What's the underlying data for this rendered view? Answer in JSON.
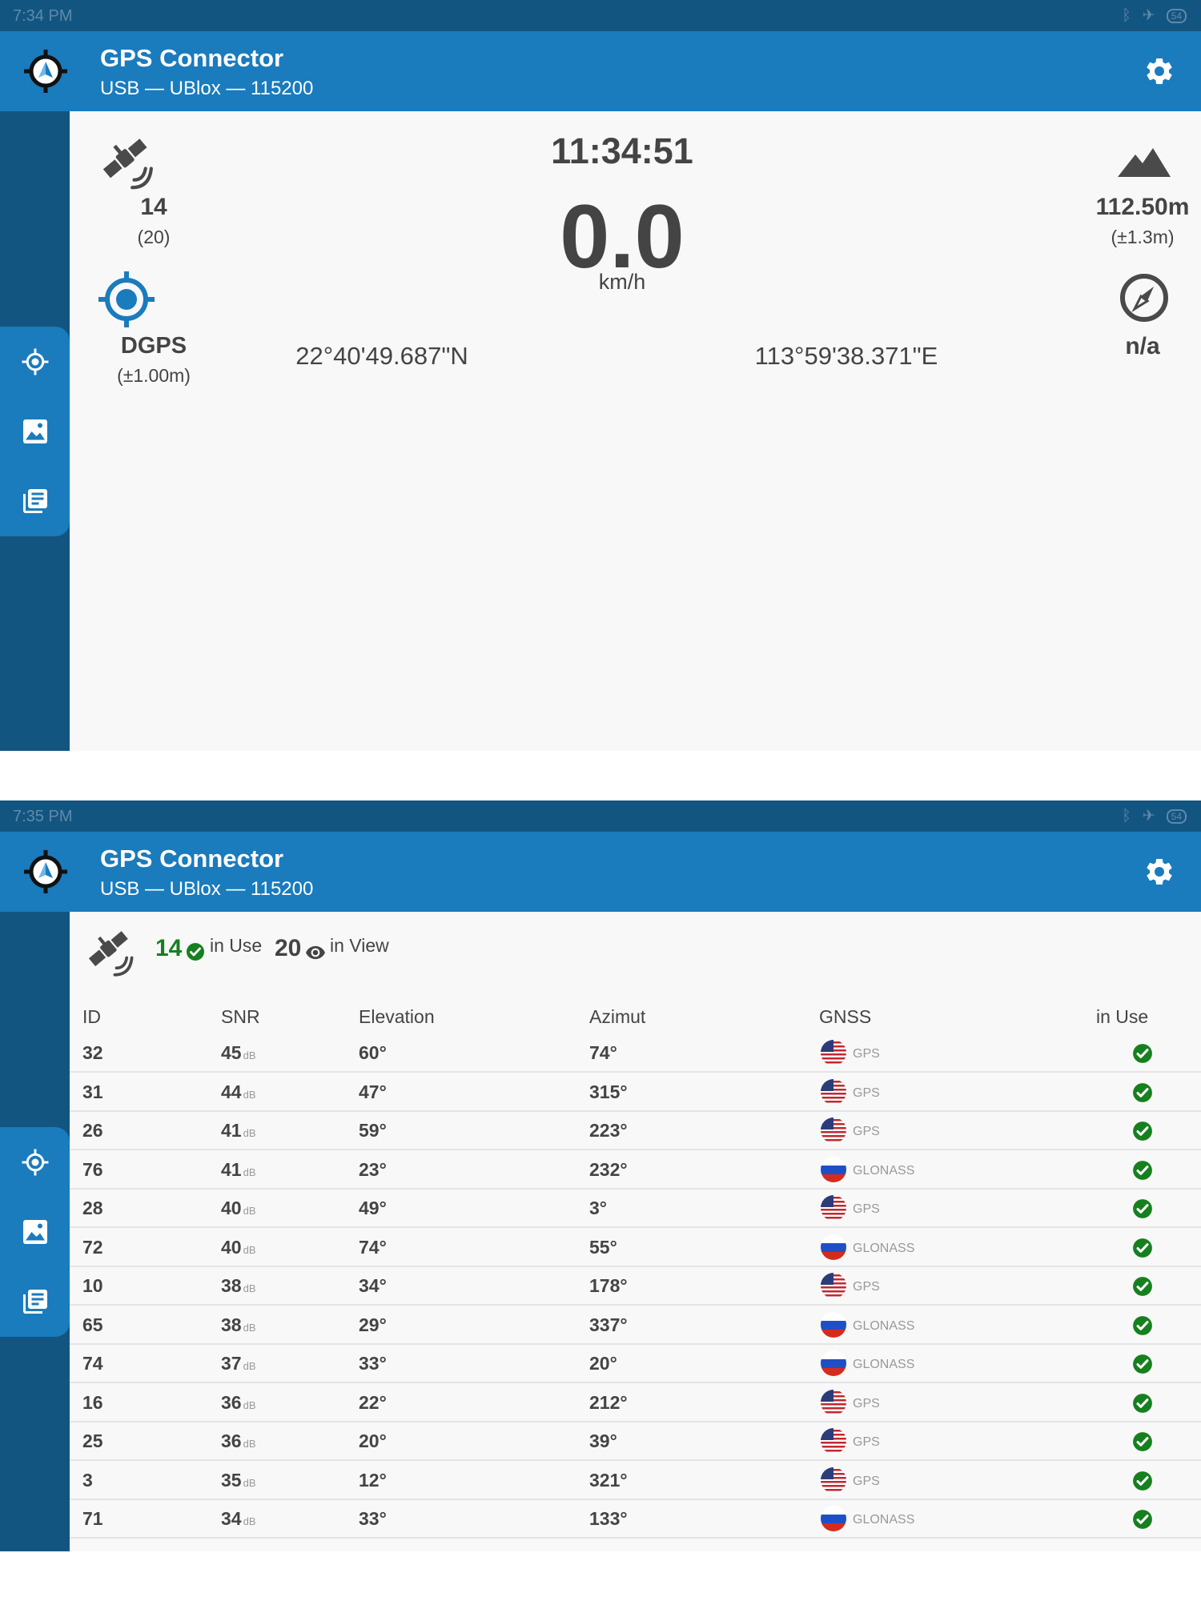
{
  "screen1": {
    "status_time": "7:34 PM",
    "battery": "54",
    "app": {
      "title": "GPS Connector",
      "subtitle": "USB — UBlox — 115200"
    },
    "dashboard": {
      "satellites_in_use": "14",
      "satellites_in_view": "(20)",
      "fix_type": "DGPS",
      "fix_accuracy": "(±1.00m)",
      "time": "11:34:51",
      "speed": "0.0",
      "speed_unit": "km/h",
      "latitude": "22°40'49.687\"N",
      "longitude": "113°59'38.371\"E",
      "altitude": "112.50m",
      "altitude_accuracy": "(±1.3m)",
      "heading": "n/a"
    }
  },
  "screen2": {
    "status_time": "7:35 PM",
    "battery": "54",
    "app": {
      "title": "GPS Connector",
      "subtitle": "USB — UBlox — 115200"
    },
    "summary": {
      "in_use_count": "14",
      "in_use_label": "in Use",
      "in_view_count": "20",
      "in_view_label": "in View"
    },
    "table": {
      "headers": {
        "id": "ID",
        "snr": "SNR",
        "elevation": "Elevation",
        "azimuth": "Azimut",
        "gnss": "GNSS",
        "in_use": "in Use"
      },
      "snr_unit": "dB",
      "rows": [
        {
          "id": "32",
          "snr": "45",
          "elevation": "60°",
          "azimuth": "74°",
          "gnss": "GPS",
          "flag": "us"
        },
        {
          "id": "31",
          "snr": "44",
          "elevation": "47°",
          "azimuth": "315°",
          "gnss": "GPS",
          "flag": "us"
        },
        {
          "id": "26",
          "snr": "41",
          "elevation": "59°",
          "azimuth": "223°",
          "gnss": "GPS",
          "flag": "us"
        },
        {
          "id": "76",
          "snr": "41",
          "elevation": "23°",
          "azimuth": "232°",
          "gnss": "GLONASS",
          "flag": "ru"
        },
        {
          "id": "28",
          "snr": "40",
          "elevation": "49°",
          "azimuth": "3°",
          "gnss": "GPS",
          "flag": "us"
        },
        {
          "id": "72",
          "snr": "40",
          "elevation": "74°",
          "azimuth": "55°",
          "gnss": "GLONASS",
          "flag": "ru"
        },
        {
          "id": "10",
          "snr": "38",
          "elevation": "34°",
          "azimuth": "178°",
          "gnss": "GPS",
          "flag": "us"
        },
        {
          "id": "65",
          "snr": "38",
          "elevation": "29°",
          "azimuth": "337°",
          "gnss": "GLONASS",
          "flag": "ru"
        },
        {
          "id": "74",
          "snr": "37",
          "elevation": "33°",
          "azimuth": "20°",
          "gnss": "GLONASS",
          "flag": "ru"
        },
        {
          "id": "16",
          "snr": "36",
          "elevation": "22°",
          "azimuth": "212°",
          "gnss": "GPS",
          "flag": "us"
        },
        {
          "id": "25",
          "snr": "36",
          "elevation": "20°",
          "azimuth": "39°",
          "gnss": "GPS",
          "flag": "us"
        },
        {
          "id": "3",
          "snr": "35",
          "elevation": "12°",
          "azimuth": "321°",
          "gnss": "GPS",
          "flag": "us"
        },
        {
          "id": "71",
          "snr": "34",
          "elevation": "33°",
          "azimuth": "133°",
          "gnss": "GLONASS",
          "flag": "ru"
        }
      ]
    }
  },
  "colors": {
    "app_bar": "#1a7bbd",
    "status_bar": "#135581",
    "check_green": "#16801f",
    "text": "#444444"
  }
}
